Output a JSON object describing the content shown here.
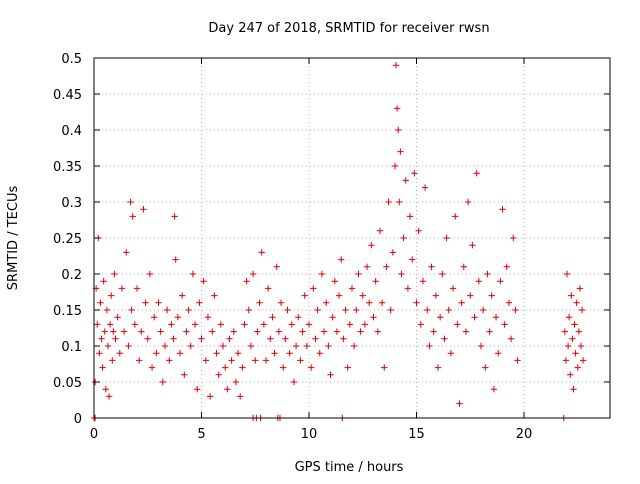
{
  "colors": {
    "series": "#e00000",
    "axis": "#000000",
    "grid": "#a0a0a0"
  },
  "chart_data": {
    "type": "scatter",
    "title": "Day 247 of 2018, SRMTID for receiver rwsn",
    "xlabel": "GPS time / hours",
    "ylabel": "SRMTID / TECUs",
    "xlim": [
      0,
      24
    ],
    "ylim": [
      0,
      0.5
    ],
    "grid": true,
    "marker": "+",
    "x_ticks": [
      0,
      5,
      10,
      15,
      20
    ],
    "x_tick_labels": [
      "0",
      "5",
      "10",
      "15",
      "20"
    ],
    "y_ticks": [
      0,
      0.05,
      0.1,
      0.15,
      0.2,
      0.25,
      0.3,
      0.35,
      0.4,
      0.45,
      0.5
    ],
    "y_tick_labels": [
      "0",
      "0.05",
      "0.1",
      "0.15",
      "0.2",
      "0.25",
      "0.3",
      "0.35",
      "0.4",
      "0.45",
      "0.5"
    ],
    "series": [
      {
        "name": "SRMTID",
        "points": [
          [
            0.05,
            0.05
          ],
          [
            0.1,
            0.18
          ],
          [
            0.15,
            0.13
          ],
          [
            0.2,
            0.25
          ],
          [
            0.25,
            0.09
          ],
          [
            0.3,
            0.16
          ],
          [
            0.35,
            0.11
          ],
          [
            0.4,
            0.07
          ],
          [
            0.45,
            0.19
          ],
          [
            0.5,
            0.12
          ],
          [
            0.55,
            0.04
          ],
          [
            0.6,
            0.15
          ],
          [
            0.65,
            0.1
          ],
          [
            0.7,
            0.03
          ],
          [
            0.75,
            0.13
          ],
          [
            0.8,
            0.17
          ],
          [
            0.85,
            0.08
          ],
          [
            0.9,
            0.12
          ],
          [
            0.95,
            0.2
          ],
          [
            1.0,
            0.11
          ],
          [
            1.1,
            0.14
          ],
          [
            1.2,
            0.09
          ],
          [
            1.3,
            0.18
          ],
          [
            1.4,
            0.12
          ],
          [
            1.5,
            0.23
          ],
          [
            1.6,
            0.1
          ],
          [
            1.7,
            0.3
          ],
          [
            1.75,
            0.15
          ],
          [
            1.8,
            0.28
          ],
          [
            1.9,
            0.13
          ],
          [
            2.0,
            0.18
          ],
          [
            2.1,
            0.08
          ],
          [
            2.2,
            0.12
          ],
          [
            2.3,
            0.29
          ],
          [
            2.4,
            0.16
          ],
          [
            2.5,
            0.11
          ],
          [
            2.6,
            0.2
          ],
          [
            2.7,
            0.07
          ],
          [
            2.8,
            0.14
          ],
          [
            2.9,
            0.09
          ],
          [
            3.0,
            0.16
          ],
          [
            3.1,
            0.12
          ],
          [
            3.2,
            0.05
          ],
          [
            3.3,
            0.1
          ],
          [
            3.4,
            0.15
          ],
          [
            3.5,
            0.08
          ],
          [
            3.6,
            0.13
          ],
          [
            3.7,
            0.11
          ],
          [
            3.75,
            0.28
          ],
          [
            3.8,
            0.22
          ],
          [
            3.9,
            0.14
          ],
          [
            4.0,
            0.09
          ],
          [
            4.1,
            0.17
          ],
          [
            4.2,
            0.06
          ],
          [
            4.3,
            0.12
          ],
          [
            4.4,
            0.15
          ],
          [
            4.5,
            0.1
          ],
          [
            4.6,
            0.2
          ],
          [
            4.7,
            0.13
          ],
          [
            4.8,
            0.04
          ],
          [
            4.9,
            0.16
          ],
          [
            5.0,
            0.11
          ],
          [
            5.1,
            0.19
          ],
          [
            5.2,
            0.08
          ],
          [
            5.3,
            0.14
          ],
          [
            5.4,
            0.03
          ],
          [
            5.5,
            0.12
          ],
          [
            5.6,
            0.17
          ],
          [
            5.7,
            0.09
          ],
          [
            5.8,
            0.06
          ],
          [
            5.9,
            0.13
          ],
          [
            6.0,
            0.1
          ],
          [
            6.1,
            0.07
          ],
          [
            6.2,
            0.04
          ],
          [
            6.3,
            0.11
          ],
          [
            6.4,
            0.08
          ],
          [
            6.5,
            0.12
          ],
          [
            6.6,
            0.05
          ],
          [
            6.7,
            0.09
          ],
          [
            6.8,
            0.03
          ],
          [
            6.9,
            0.07
          ],
          [
            7.0,
            0.13
          ],
          [
            7.1,
            0.19
          ],
          [
            7.2,
            0.15
          ],
          [
            7.3,
            0.1
          ],
          [
            7.4,
            0.2
          ],
          [
            7.5,
            0.08
          ],
          [
            7.6,
            0.12
          ],
          [
            7.7,
            0.16
          ],
          [
            7.8,
            0.23
          ],
          [
            7.9,
            0.13
          ],
          [
            8.0,
            0.08
          ],
          [
            8.1,
            0.18
          ],
          [
            8.2,
            0.11
          ],
          [
            8.3,
            0.14
          ],
          [
            8.4,
            0.09
          ],
          [
            8.5,
            0.21
          ],
          [
            8.6,
            0.12
          ],
          [
            8.7,
            0.16
          ],
          [
            8.8,
            0.07
          ],
          [
            8.9,
            0.11
          ],
          [
            9.0,
            0.15
          ],
          [
            9.1,
            0.09
          ],
          [
            9.2,
            0.13
          ],
          [
            9.3,
            0.05
          ],
          [
            9.4,
            0.1
          ],
          [
            9.5,
            0.14
          ],
          [
            9.6,
            0.08
          ],
          [
            9.7,
            0.12
          ],
          [
            9.8,
            0.17
          ],
          [
            9.9,
            0.1
          ],
          [
            10.0,
            0.13
          ],
          [
            10.1,
            0.07
          ],
          [
            10.2,
            0.18
          ],
          [
            10.3,
            0.11
          ],
          [
            10.4,
            0.15
          ],
          [
            10.5,
            0.09
          ],
          [
            10.6,
            0.2
          ],
          [
            10.7,
            0.12
          ],
          [
            10.8,
            0.16
          ],
          [
            10.9,
            0.1
          ],
          [
            11.0,
            0.06
          ],
          [
            11.1,
            0.14
          ],
          [
            11.2,
            0.19
          ],
          [
            11.3,
            0.12
          ],
          [
            11.4,
            0.17
          ],
          [
            11.5,
            0.22
          ],
          [
            11.6,
            0.11
          ],
          [
            11.7,
            0.15
          ],
          [
            11.8,
            0.07
          ],
          [
            11.9,
            0.13
          ],
          [
            12.0,
            0.18
          ],
          [
            12.1,
            0.1
          ],
          [
            12.2,
            0.15
          ],
          [
            12.3,
            0.2
          ],
          [
            12.4,
            0.12
          ],
          [
            12.5,
            0.17
          ],
          [
            12.6,
            0.13
          ],
          [
            12.7,
            0.21
          ],
          [
            12.8,
            0.16
          ],
          [
            12.9,
            0.24
          ],
          [
            13.0,
            0.14
          ],
          [
            13.1,
            0.19
          ],
          [
            13.2,
            0.12
          ],
          [
            13.3,
            0.26
          ],
          [
            13.4,
            0.16
          ],
          [
            13.5,
            0.07
          ],
          [
            13.6,
            0.21
          ],
          [
            13.7,
            0.3
          ],
          [
            13.8,
            0.15
          ],
          [
            13.9,
            0.23
          ],
          [
            14.0,
            0.35
          ],
          [
            14.05,
            0.49
          ],
          [
            14.1,
            0.43
          ],
          [
            14.15,
            0.4
          ],
          [
            14.2,
            0.3
          ],
          [
            14.25,
            0.37
          ],
          [
            14.3,
            0.2
          ],
          [
            14.4,
            0.25
          ],
          [
            14.5,
            0.33
          ],
          [
            14.6,
            0.18
          ],
          [
            14.7,
            0.28
          ],
          [
            14.8,
            0.22
          ],
          [
            14.9,
            0.34
          ],
          [
            15.0,
            0.16
          ],
          [
            15.1,
            0.26
          ],
          [
            15.2,
            0.13
          ],
          [
            15.3,
            0.19
          ],
          [
            15.4,
            0.32
          ],
          [
            15.5,
            0.15
          ],
          [
            15.6,
            0.1
          ],
          [
            15.7,
            0.21
          ],
          [
            15.8,
            0.12
          ],
          [
            15.9,
            0.17
          ],
          [
            16.0,
            0.07
          ],
          [
            16.1,
            0.14
          ],
          [
            16.2,
            0.2
          ],
          [
            16.3,
            0.11
          ],
          [
            16.4,
            0.25
          ],
          [
            16.5,
            0.15
          ],
          [
            16.6,
            0.09
          ],
          [
            16.7,
            0.18
          ],
          [
            16.8,
            0.28
          ],
          [
            16.9,
            0.13
          ],
          [
            17.0,
            0.02
          ],
          [
            17.1,
            0.16
          ],
          [
            17.2,
            0.21
          ],
          [
            17.3,
            0.12
          ],
          [
            17.4,
            0.3
          ],
          [
            17.5,
            0.17
          ],
          [
            17.6,
            0.24
          ],
          [
            17.7,
            0.14
          ],
          [
            17.8,
            0.34
          ],
          [
            17.9,
            0.19
          ],
          [
            18.0,
            0.1
          ],
          [
            18.1,
            0.15
          ],
          [
            18.2,
            0.07
          ],
          [
            18.3,
            0.2
          ],
          [
            18.4,
            0.12
          ],
          [
            18.5,
            0.17
          ],
          [
            18.6,
            0.04
          ],
          [
            18.7,
            0.14
          ],
          [
            18.8,
            0.09
          ],
          [
            18.9,
            0.19
          ],
          [
            19.0,
            0.29
          ],
          [
            19.1,
            0.13
          ],
          [
            19.2,
            0.21
          ],
          [
            19.3,
            0.16
          ],
          [
            19.4,
            0.11
          ],
          [
            19.5,
            0.25
          ],
          [
            19.6,
            0.15
          ],
          [
            19.7,
            0.08
          ],
          [
            21.9,
            0.12
          ],
          [
            21.95,
            0.08
          ],
          [
            22.0,
            0.2
          ],
          [
            22.05,
            0.1
          ],
          [
            22.1,
            0.14
          ],
          [
            22.15,
            0.06
          ],
          [
            22.2,
            0.17
          ],
          [
            22.25,
            0.11
          ],
          [
            22.3,
            0.04
          ],
          [
            22.35,
            0.13
          ],
          [
            22.4,
            0.09
          ],
          [
            22.45,
            0.16
          ],
          [
            22.5,
            0.07
          ],
          [
            22.55,
            0.12
          ],
          [
            22.6,
            0.18
          ],
          [
            22.65,
            0.1
          ],
          [
            22.7,
            0.15
          ],
          [
            22.75,
            0.08
          ]
        ]
      }
    ],
    "baseline_points": [
      [
        0.0,
        0.0
      ],
      [
        0.05,
        0.0
      ],
      [
        7.4,
        0.0
      ],
      [
        7.55,
        0.0
      ],
      [
        7.75,
        0.0
      ],
      [
        8.55,
        0.0
      ],
      [
        8.65,
        0.0
      ],
      [
        11.55,
        0.0
      ],
      [
        21.85,
        0.0
      ]
    ]
  }
}
